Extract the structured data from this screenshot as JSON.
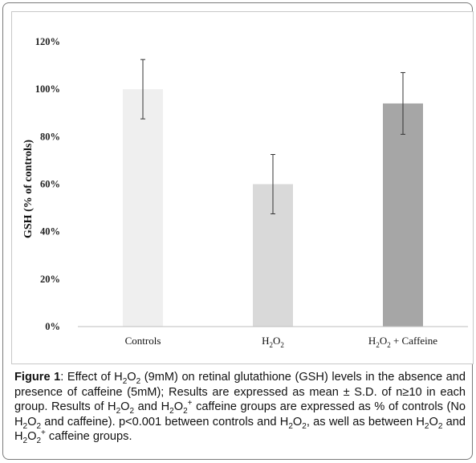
{
  "chart_data": {
    "type": "bar",
    "categories": [
      "Controls",
      "H₂O₂",
      "H₂O₂ + Caffeine"
    ],
    "category_parts": [
      [
        {
          "t": "Controls"
        }
      ],
      [
        {
          "t": "H"
        },
        {
          "t": "2",
          "sub": true
        },
        {
          "t": "O"
        },
        {
          "t": "2",
          "sub": true
        }
      ],
      [
        {
          "t": "H"
        },
        {
          "t": "2",
          "sub": true
        },
        {
          "t": "O"
        },
        {
          "t": "2",
          "sub": true
        },
        {
          "t": " + Caffeine"
        }
      ]
    ],
    "values": [
      100,
      60,
      94
    ],
    "errors": [
      12.5,
      12.5,
      13
    ],
    "bar_colors": [
      "#efefef",
      "#d9d9d9",
      "#a6a6a6"
    ],
    "ylabel": "GSH (% of controls)",
    "ylim": [
      0,
      120
    ],
    "yticks": [
      0,
      20,
      40,
      60,
      80,
      100,
      120
    ],
    "ytick_labels": [
      "0%",
      "20%",
      "40%",
      "60%",
      "80%",
      "100%",
      "120%"
    ],
    "grid": false
  },
  "caption": {
    "parts": [
      {
        "t": "Figure 1",
        "b": true
      },
      {
        "t": ": Effect of H"
      },
      {
        "t": "2",
        "sub": true
      },
      {
        "t": "O"
      },
      {
        "t": "2",
        "sub": true
      },
      {
        "t": " (9mM) on retinal glutathione (GSH) levels in the absence and presence of caffeine (5mM); Results are expressed as mean ± S.D. of n≥10 in each group.  Results of H"
      },
      {
        "t": "2",
        "sub": true
      },
      {
        "t": "O"
      },
      {
        "t": "2",
        "sub": true
      },
      {
        "t": " and H"
      },
      {
        "t": "2",
        "sub": true
      },
      {
        "t": "O"
      },
      {
        "t": "2",
        "sub": true
      },
      {
        "t": "+",
        "sup": true
      },
      {
        "t": " caffeine groups are expressed as % of controls (No H"
      },
      {
        "t": "2",
        "sub": true
      },
      {
        "t": "O"
      },
      {
        "t": "2",
        "sub": true
      },
      {
        "t": " and caffeine). p<0.001 between controls and H"
      },
      {
        "t": "2",
        "sub": true
      },
      {
        "t": "O"
      },
      {
        "t": "2",
        "sub": true
      },
      {
        "t": ", as well as  between H"
      },
      {
        "t": "2",
        "sub": true
      },
      {
        "t": "O"
      },
      {
        "t": "2",
        "sub": true
      },
      {
        "t": "  and H"
      },
      {
        "t": "2",
        "sub": true
      },
      {
        "t": "O"
      },
      {
        "t": "2",
        "sub": true
      },
      {
        "t": "+",
        "sup": true
      },
      {
        "t": " caffeine groups."
      }
    ]
  }
}
